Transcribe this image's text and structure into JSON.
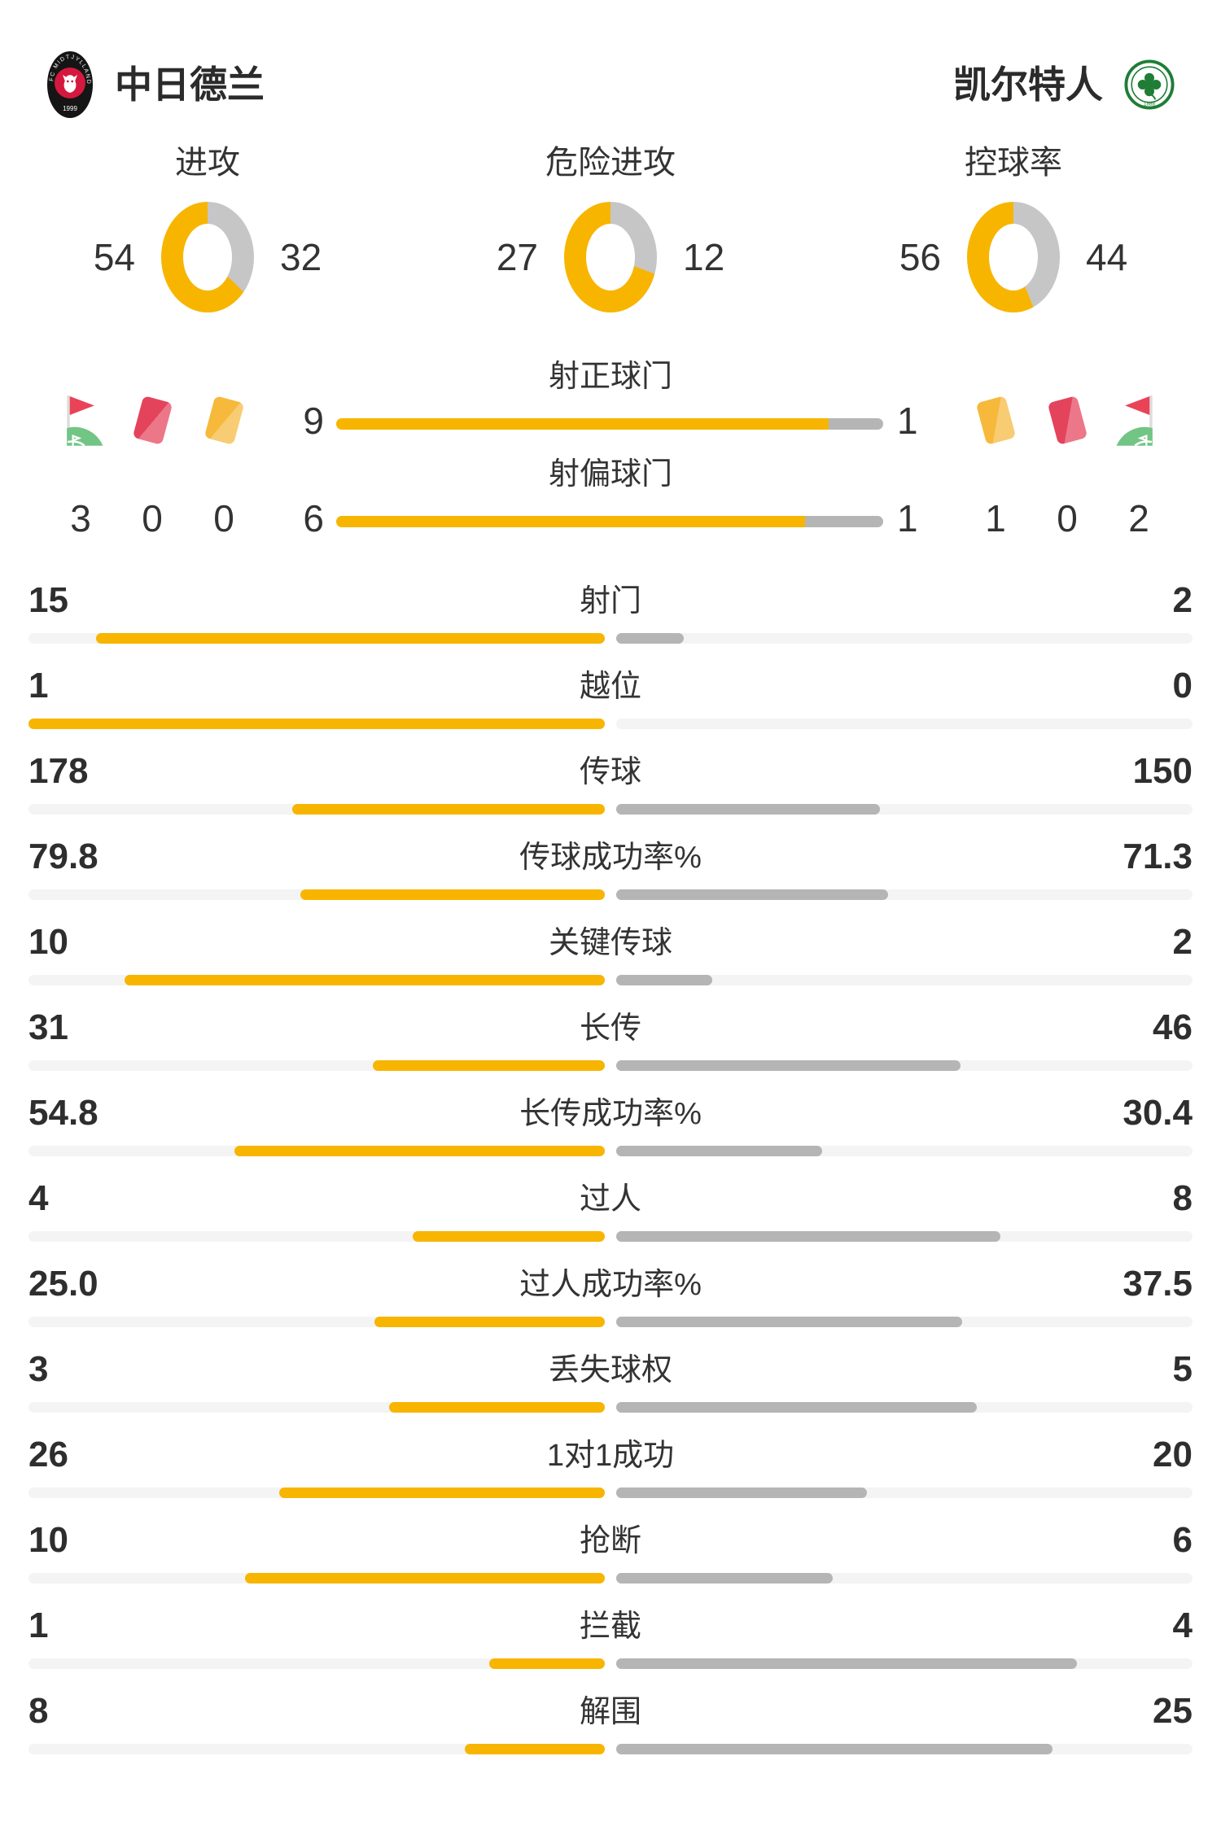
{
  "teams": {
    "home": {
      "name": "中日德兰"
    },
    "away": {
      "name": "凯尔特人"
    }
  },
  "donuts": [
    {
      "label": "进攻",
      "home": "54",
      "away": "32"
    },
    {
      "label": "危险进攻",
      "home": "27",
      "away": "12"
    },
    {
      "label": "控球率",
      "home": "56",
      "away": "44"
    }
  ],
  "shot_bars": [
    {
      "label": "射正球门",
      "home": "9",
      "away": "1"
    },
    {
      "label": "射偏球门",
      "home": "6",
      "away": "1"
    }
  ],
  "events": {
    "home": [
      {
        "icon": "corner-flag",
        "count": "3"
      },
      {
        "icon": "red-card",
        "count": "0"
      },
      {
        "icon": "yellow-card",
        "count": "0"
      }
    ],
    "away": [
      {
        "icon": "yellow-card",
        "count": "1"
      },
      {
        "icon": "red-card",
        "count": "0"
      },
      {
        "icon": "corner-flag",
        "count": "2"
      }
    ]
  },
  "stats": [
    {
      "label": "射门",
      "home": "15",
      "away": "2"
    },
    {
      "label": "越位",
      "home": "1",
      "away": "0"
    },
    {
      "label": "传球",
      "home": "178",
      "away": "150"
    },
    {
      "label": "传球成功率%",
      "home": "79.8",
      "away": "71.3"
    },
    {
      "label": "关键传球",
      "home": "10",
      "away": "2"
    },
    {
      "label": "长传",
      "home": "31",
      "away": "46"
    },
    {
      "label": "长传成功率%",
      "home": "54.8",
      "away": "30.4"
    },
    {
      "label": "过人",
      "home": "4",
      "away": "8"
    },
    {
      "label": "过人成功率%",
      "home": "25.0",
      "away": "37.5"
    },
    {
      "label": "丢失球权",
      "home": "3",
      "away": "5"
    },
    {
      "label": "1对1成功",
      "home": "26",
      "away": "20"
    },
    {
      "label": "抢断",
      "home": "10",
      "away": "6"
    },
    {
      "label": "拦截",
      "home": "1",
      "away": "4"
    },
    {
      "label": "解围",
      "home": "8",
      "away": "25"
    }
  ],
  "colors": {
    "home_accent": "#F7B500",
    "away_bar": "#B5B5B5",
    "donut_away": "#C6C6C6",
    "track": "#F4F4F4",
    "text": "#333333",
    "red_card": "#E4435C",
    "yellow_card": "#F6B93B",
    "flag_red": "#EA4256",
    "grass_green": "#72C584",
    "celtic_green": "#1F7D36",
    "midtjylland_red": "#D5193E",
    "midtjylland_black": "#151515"
  }
}
